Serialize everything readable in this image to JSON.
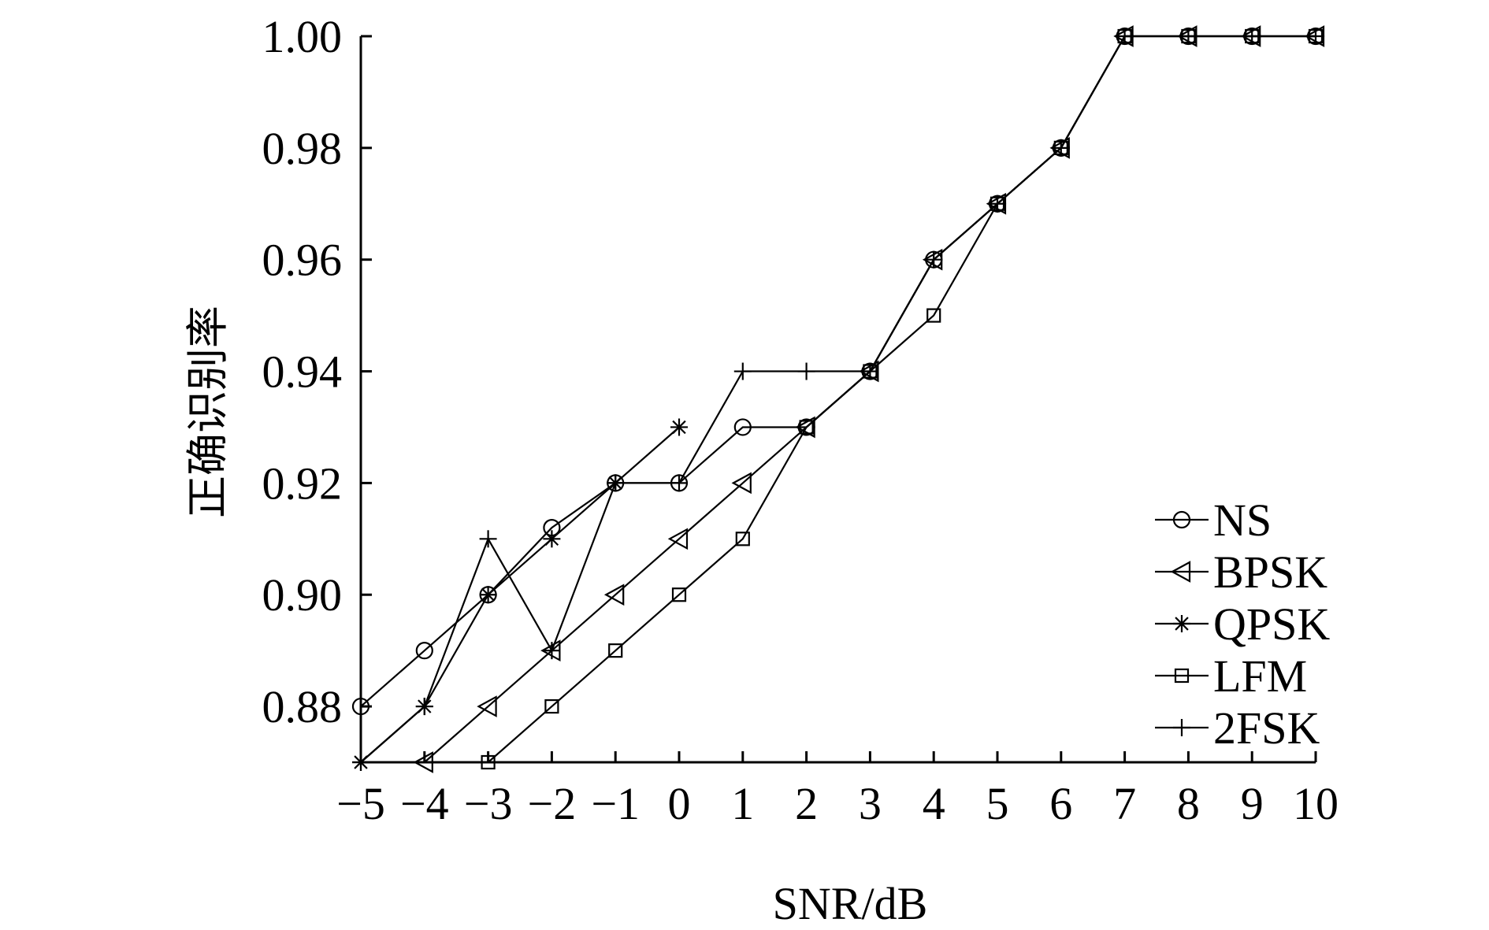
{
  "chart_data": {
    "type": "line",
    "title": "",
    "xlabel": "SNR/dB",
    "ylabel": "正确识别率",
    "x": [
      -5,
      -4,
      -3,
      -2,
      -1,
      0,
      1,
      2,
      3,
      4,
      5,
      6,
      7,
      8,
      9,
      10
    ],
    "x_tick_labels": [
      "−5",
      "−4",
      "−3",
      "−2",
      "−1",
      "0",
      "1",
      "2",
      "3",
      "4",
      "5",
      "6",
      "7",
      "8",
      "9",
      "10"
    ],
    "y_ticks": [
      0.88,
      0.9,
      0.92,
      0.94,
      0.96,
      0.98,
      1.0
    ],
    "y_tick_labels": [
      "0.88",
      "0.90",
      "0.92",
      "0.94",
      "0.96",
      "0.98",
      "1.00"
    ],
    "xlim": [
      -5,
      10
    ],
    "ylim": [
      0.87,
      1.0
    ],
    "grid": false,
    "legend_position": "bottom-right",
    "series": [
      {
        "name": "NS",
        "marker": "circle",
        "x": [
          -5,
          -4,
          -3,
          -2,
          -1,
          0,
          1,
          2,
          3,
          4,
          5,
          6,
          7,
          8,
          9,
          10
        ],
        "values": [
          0.88,
          0.89,
          0.9,
          0.912,
          0.92,
          0.92,
          0.93,
          0.93,
          0.94,
          0.96,
          0.97,
          0.98,
          1.0,
          1.0,
          1.0,
          1.0
        ]
      },
      {
        "name": "BPSK",
        "marker": "triangle-left",
        "x": [
          -4,
          -3,
          -2,
          -1,
          0,
          1,
          2,
          3,
          4,
          5,
          6,
          7,
          8,
          9,
          10
        ],
        "values": [
          0.87,
          0.88,
          0.89,
          0.9,
          0.91,
          0.92,
          0.93,
          0.94,
          0.96,
          0.97,
          0.98,
          1.0,
          1.0,
          1.0,
          1.0
        ]
      },
      {
        "name": "QPSK",
        "marker": "asterisk",
        "x": [
          -5,
          -4,
          -3,
          -2,
          -1,
          0
        ],
        "values": [
          0.87,
          0.88,
          0.9,
          0.91,
          0.92,
          0.93
        ]
      },
      {
        "name": "LFM",
        "marker": "square",
        "x": [
          -3,
          -2,
          -1,
          0,
          1,
          2,
          3,
          4,
          5,
          6,
          7,
          8,
          9,
          10
        ],
        "values": [
          0.87,
          0.88,
          0.89,
          0.9,
          0.91,
          0.93,
          0.94,
          0.95,
          0.97,
          0.98,
          1.0,
          1.0,
          1.0,
          1.0
        ]
      },
      {
        "name": "2FSK",
        "marker": "plus",
        "x": [
          -5,
          -4,
          -3,
          -2,
          -1,
          0,
          1,
          2,
          3,
          4,
          5,
          6,
          7,
          8,
          9,
          10
        ],
        "values": [
          0.87,
          0.88,
          0.91,
          0.89,
          0.92,
          0.92,
          0.94,
          0.94,
          0.94,
          0.96,
          0.97,
          0.98,
          1.0,
          1.0,
          1.0,
          1.0
        ]
      }
    ]
  }
}
